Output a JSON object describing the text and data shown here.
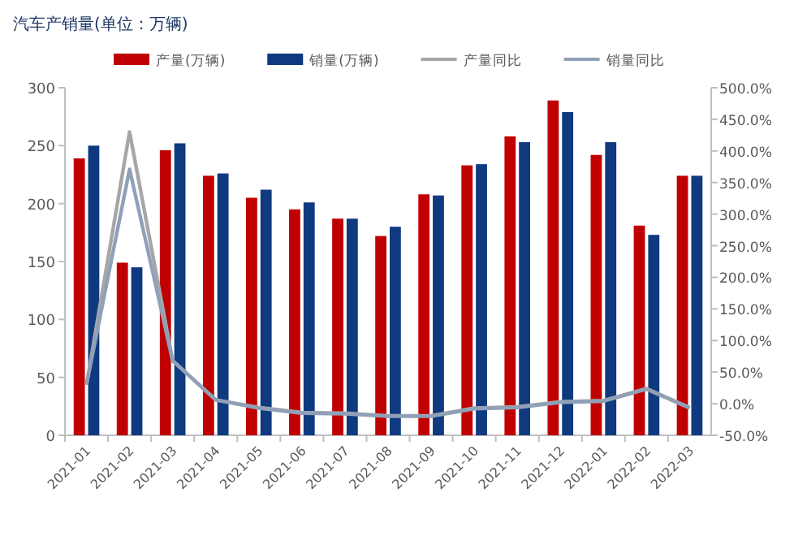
{
  "chart_data": {
    "type": "bar",
    "title": "汽车产销量(单位：万辆)",
    "categories": [
      "2021-01",
      "2021-02",
      "2021-03",
      "2021-04",
      "2021-05",
      "2021-06",
      "2021-07",
      "2021-08",
      "2021-09",
      "2021-10",
      "2021-11",
      "2021-12",
      "2022-01",
      "2022-02",
      "2022-03"
    ],
    "series": [
      {
        "name": "产量(万辆)",
        "color": "#c00000",
        "values": [
          239,
          149,
          246,
          224,
          205,
          195,
          187,
          172,
          208,
          233,
          258,
          289,
          242,
          181,
          224
        ]
      },
      {
        "name": "销量(万辆)",
        "color": "#0f3a80",
        "values": [
          250,
          145,
          252,
          226,
          212,
          201,
          187,
          180,
          207,
          234,
          253,
          279,
          253,
          173,
          224
        ]
      },
      {
        "name": "产量同比",
        "type": "line",
        "axis": "y2",
        "color": "#a6a6a6",
        "values": [
          30,
          430,
          68,
          6,
          -6,
          -14,
          -15,
          -19,
          -19,
          -7,
          -5,
          3,
          5,
          24,
          -6
        ]
      },
      {
        "name": "销量同比",
        "type": "line",
        "axis": "y2",
        "color": "#8fa0b8",
        "values": [
          30,
          371,
          68,
          6,
          -7,
          -15,
          -16,
          -20,
          -20,
          -8,
          -6,
          2,
          4,
          23,
          -7
        ]
      }
    ],
    "ylim": [
      0,
      300
    ],
    "yticks": [
      0,
      50,
      100,
      150,
      200,
      250,
      300
    ],
    "y2lim": [
      -50,
      500
    ],
    "y2ticks": [
      {
        "value": -50,
        "label": "-50.0%"
      },
      {
        "value": 0,
        "label": "0.0%"
      },
      {
        "value": 50,
        "label": "50.0%"
      },
      {
        "value": 100,
        "label": "100.0%"
      },
      {
        "value": 150,
        "label": "150.0%"
      },
      {
        "value": 200,
        "label": "200.0%"
      },
      {
        "value": 250,
        "label": "250.0%"
      },
      {
        "value": 300,
        "label": "300.0%"
      },
      {
        "value": 350,
        "label": "350.0%"
      },
      {
        "value": 400,
        "label": "400.0%"
      },
      {
        "value": 450,
        "label": "450.0%"
      },
      {
        "value": 500,
        "label": "500.0%"
      }
    ],
    "legend": "top",
    "grid": false
  }
}
